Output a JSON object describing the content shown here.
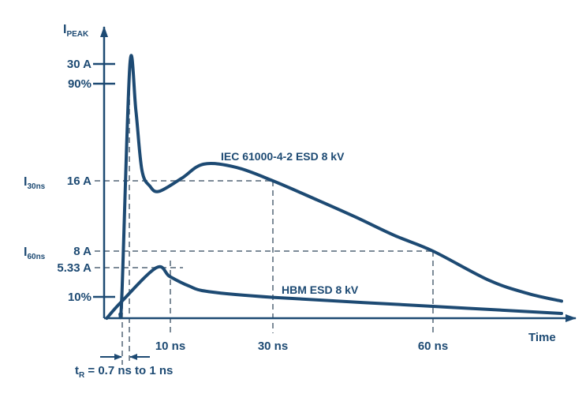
{
  "chart_data": {
    "type": "line",
    "ylabel": "I",
    "ylabel_sub": "PEAK",
    "xlabel": "Time",
    "x_ticks": [
      {
        "value": 10,
        "label": "10 ns"
      },
      {
        "value": 30,
        "label": "30 ns"
      },
      {
        "value": 60,
        "label": "60 ns"
      }
    ],
    "y_ticks": [
      {
        "value": 30,
        "label": "30 A",
        "tick": true
      },
      {
        "value": 27,
        "label": "90%",
        "tick": true
      },
      {
        "value": 16,
        "label": "16 A",
        "side_label": "I",
        "side_sub": "30ns"
      },
      {
        "value": 8,
        "label": "8 A",
        "side_label": "I",
        "side_sub": "60ns"
      },
      {
        "value": 5.33,
        "label": "5.33 A"
      },
      {
        "value": 3,
        "label": "10%",
        "tick": true
      }
    ],
    "rise_time_annotation": {
      "t": "t",
      "sub": "R",
      "text": " = 0.7 ns to 1 ns"
    },
    "series": [
      {
        "name": "IEC 61000-4-2 ESD 8 kV",
        "x": [
          2.4,
          2.7,
          3.9,
          4.8,
          5.7,
          6.9,
          8.3,
          12.2,
          16.5,
          22.9,
          30,
          38,
          45.4,
          52.7,
          60,
          68.7,
          74.8,
          80
        ],
        "y": [
          0.4,
          2.75,
          30,
          24.4,
          17.3,
          15.4,
          14.8,
          16.3,
          18,
          17.6,
          16,
          13.9,
          11.9,
          9.8,
          8,
          4,
          2.6,
          1.8
        ]
      },
      {
        "name": "HBM ESD 8 kV",
        "x": [
          0.4,
          2.7,
          7.9,
          9.9,
          13.6,
          17.5,
          30,
          60,
          80
        ],
        "y": [
          0,
          1.8,
          5.33,
          4.4,
          3.4,
          2.8,
          2.2,
          1.25,
          0.5
        ]
      }
    ],
    "colors": {
      "curve": "#1d4a73",
      "guide": "#7d8b98"
    },
    "grid": false
  }
}
